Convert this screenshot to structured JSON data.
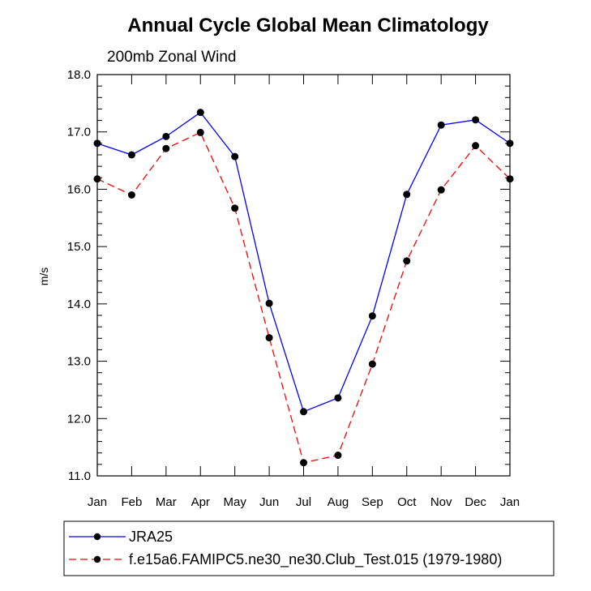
{
  "chart_data": {
    "type": "line",
    "title": "Annual Cycle Global Mean Climatology",
    "subtitle": "200mb Zonal Wind",
    "xlabel": "",
    "ylabel": "m/s",
    "categories": [
      "Jan",
      "Feb",
      "Mar",
      "Apr",
      "May",
      "Jun",
      "Jul",
      "Aug",
      "Sep",
      "Oct",
      "Nov",
      "Dec",
      "Jan"
    ],
    "ylim": [
      11.0,
      18.0
    ],
    "yticks": [
      "11.0",
      "12.0",
      "13.0",
      "14.0",
      "15.0",
      "16.0",
      "17.0",
      "18.0"
    ],
    "grid": false,
    "legend_position": "bottom",
    "series": [
      {
        "name": "JRA25",
        "color": "#0000ff",
        "dash": "solid",
        "values": [
          16.8,
          16.6,
          16.92,
          17.34,
          16.57,
          14.01,
          12.12,
          12.36,
          13.79,
          15.91,
          17.12,
          17.21,
          16.8
        ]
      },
      {
        "name": "f.e15a6.FAMIPC5.ne30_ne30.Club_Test.015 (1979-1980)",
        "color": "#ff0000",
        "dash": "dashed",
        "values": [
          16.18,
          15.9,
          16.71,
          16.99,
          15.67,
          13.41,
          11.23,
          11.36,
          12.95,
          14.75,
          15.99,
          16.76,
          16.18
        ]
      }
    ]
  }
}
